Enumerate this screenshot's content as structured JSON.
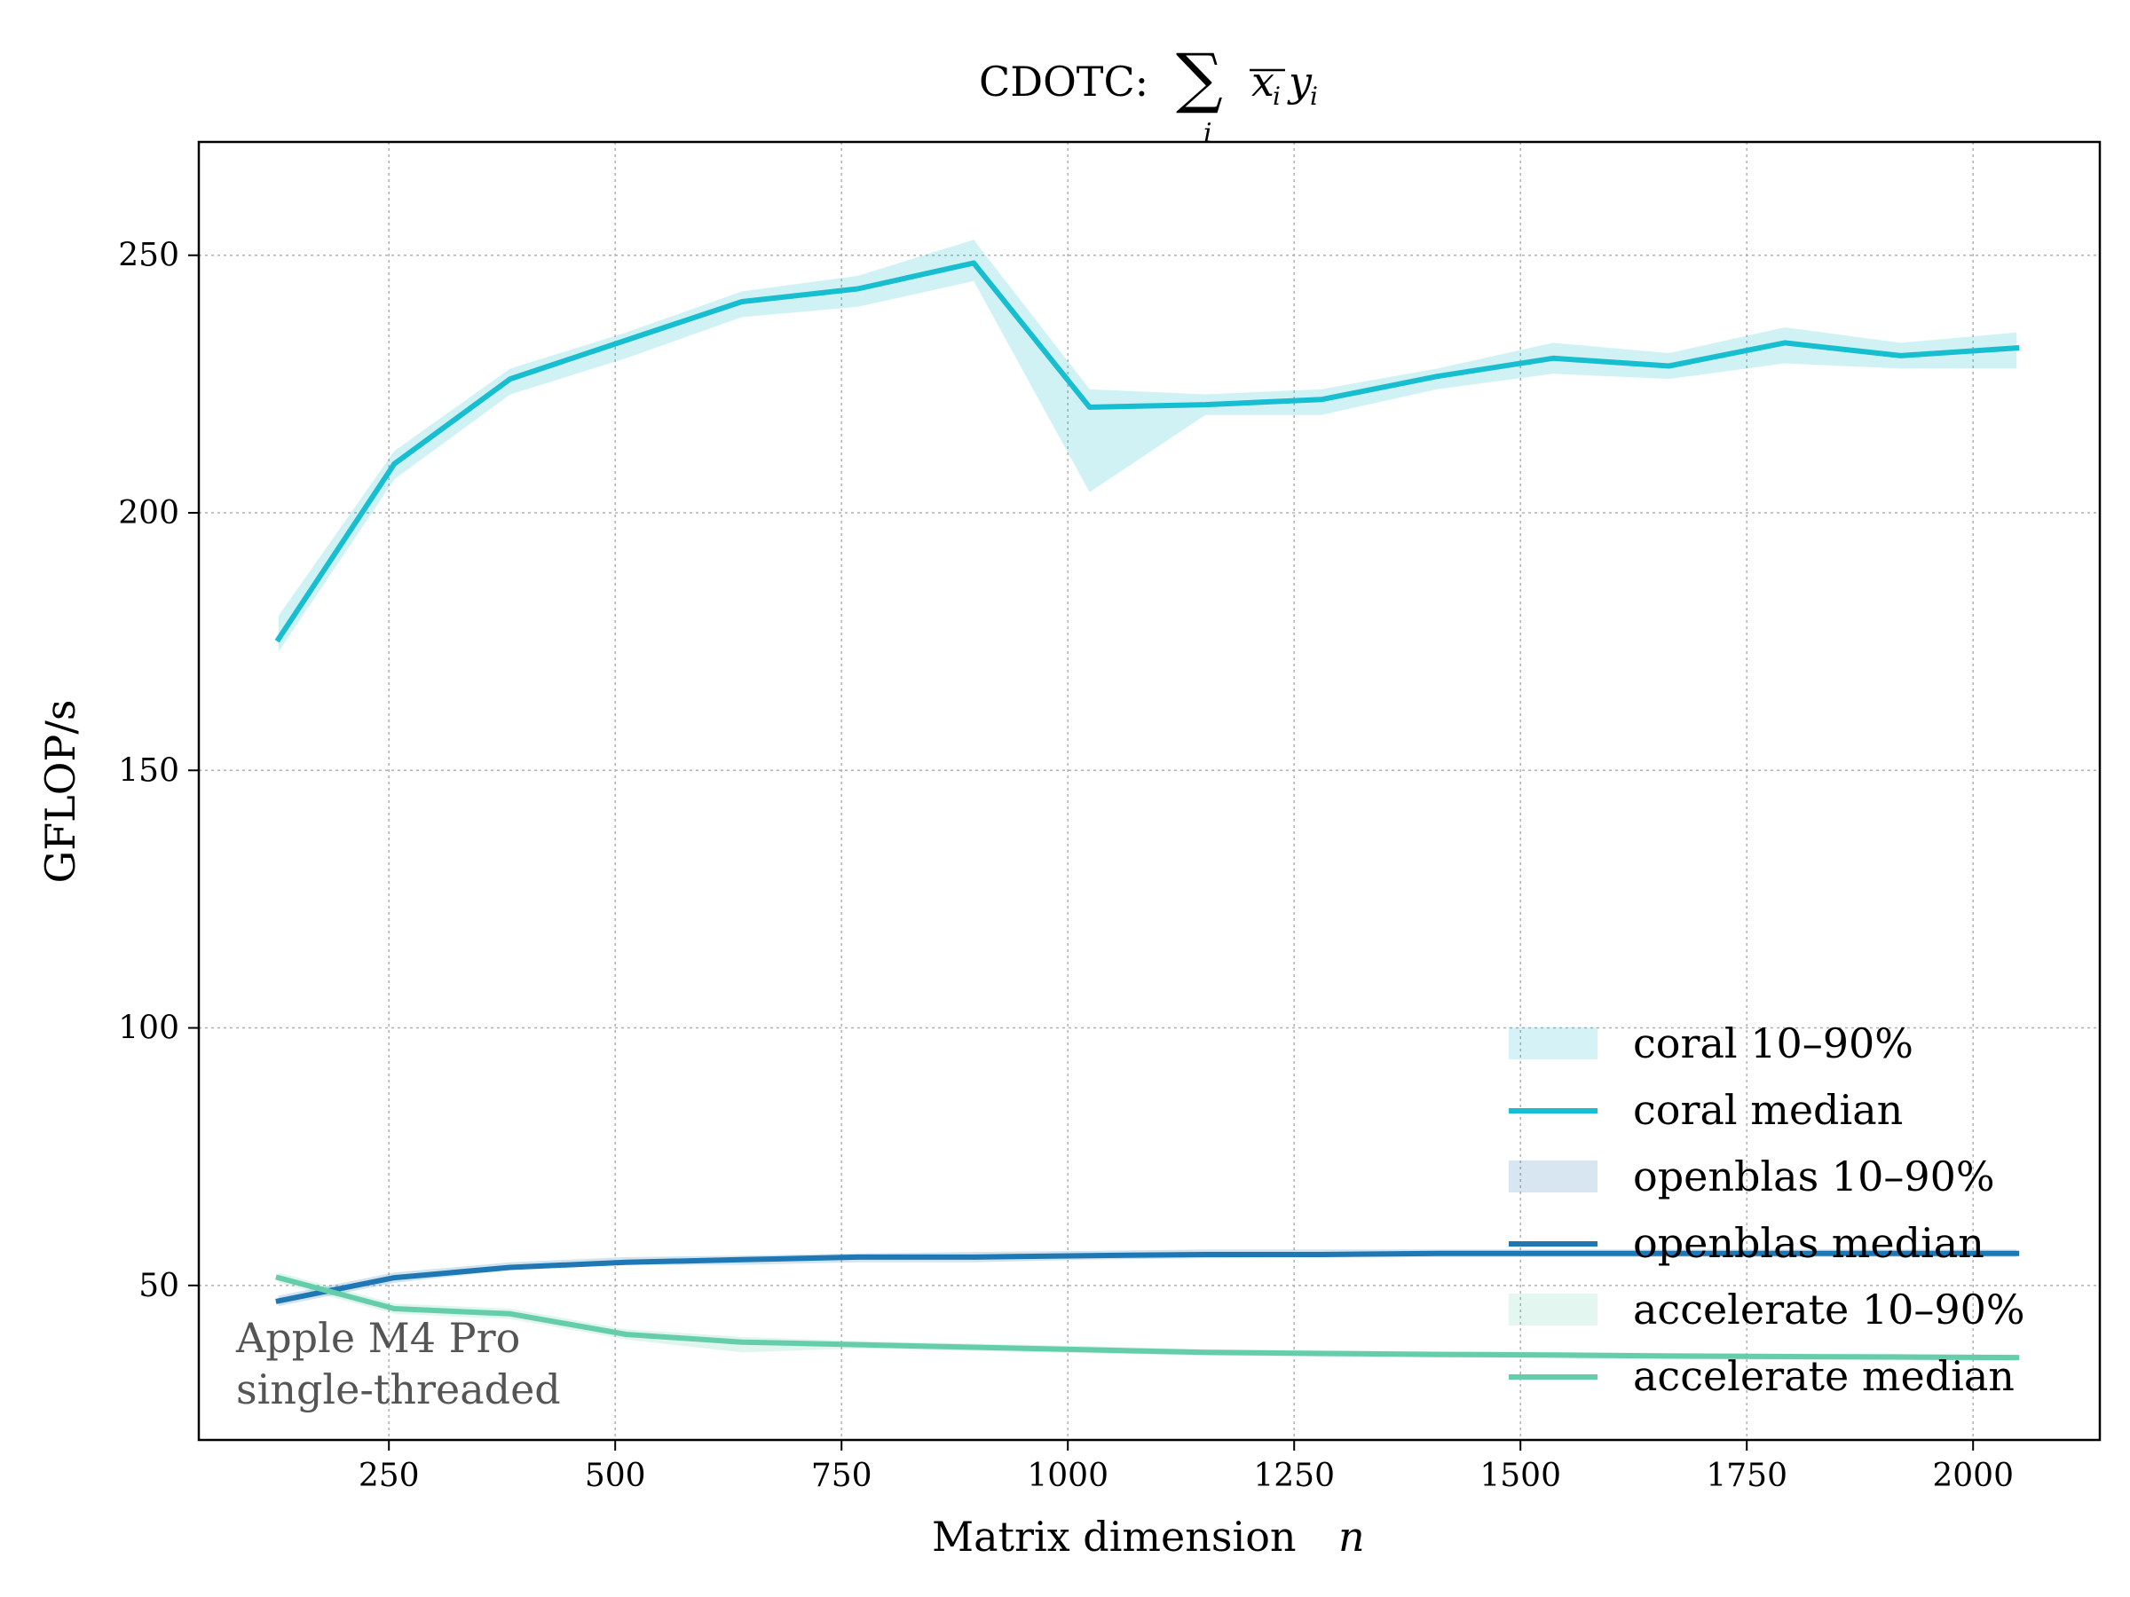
{
  "chart_data": {
    "type": "line",
    "title": "CDOTC: ∑ x̄ᵢ yᵢ",
    "title_parts": {
      "prefix": "CDOTC:",
      "sum": "∑",
      "sub": "i",
      "x": "x",
      "xsub": "i",
      "y": "y",
      "ysub": "i"
    },
    "xlabel": "Matrix dimension",
    "xlabel_var": "n",
    "ylabel": "GFLOP/s",
    "xlim": [
      40,
      2140
    ],
    "ylim": [
      20,
      272
    ],
    "xticks": [
      250,
      500,
      750,
      1000,
      1250,
      1500,
      1750,
      2000
    ],
    "yticks": [
      50,
      100,
      150,
      200,
      250
    ],
    "grid": true,
    "legend_position": "lower-right",
    "annotation": [
      "Apple M4 Pro",
      "single-threaded"
    ],
    "x": [
      128,
      256,
      384,
      512,
      640,
      768,
      896,
      1024,
      1152,
      1280,
      1408,
      1536,
      1664,
      1792,
      1920,
      2048
    ],
    "series": [
      {
        "name": "coral median",
        "band_name": "coral 10–90%",
        "color": "#17becf",
        "band_color": "#17becf",
        "values": [
          175.5,
          209.5,
          226,
          233.5,
          241,
          243.5,
          248.5,
          220.5,
          221,
          222,
          226.5,
          230,
          228.5,
          233,
          230.5,
          232
        ],
        "p10": [
          173,
          206.5,
          223,
          230,
          238,
          240,
          245,
          204,
          219,
          219,
          224,
          227,
          226,
          229,
          228,
          228
        ],
        "p90": [
          180,
          212,
          228,
          235,
          243,
          246,
          253,
          224,
          223,
          224,
          228,
          233,
          231,
          236,
          233,
          235
        ]
      },
      {
        "name": "openblas median",
        "band_name": "openblas 10–90%",
        "color": "#1f77b4",
        "band_color": "#1f77b4",
        "values": [
          47,
          51.5,
          53.5,
          54.5,
          55,
          55.5,
          55.5,
          55.8,
          56,
          56,
          56.2,
          56.2,
          56.2,
          56.2,
          56.2,
          56.2
        ],
        "p10": [
          46,
          50.5,
          53,
          54,
          54,
          54.5,
          54.5,
          55,
          55.3,
          55.5,
          55.5,
          55.5,
          55.5,
          55.5,
          55.5,
          55.5
        ],
        "p90": [
          48,
          52.5,
          54.5,
          55.5,
          55.8,
          56.2,
          56.5,
          56.7,
          57,
          57,
          57,
          57,
          57,
          57,
          57,
          57
        ]
      },
      {
        "name": "accelerate median",
        "band_name": "accelerate 10–90%",
        "color": "#66cdaa",
        "band_color": "#66cdaa",
        "values": [
          51.5,
          45.5,
          44.5,
          40.5,
          39,
          38.5,
          38,
          37.5,
          37,
          36.8,
          36.6,
          36.5,
          36.3,
          36.2,
          36.1,
          36
        ],
        "p10": [
          50.5,
          44.5,
          43.5,
          39.5,
          37,
          37.8,
          37.3,
          36.8,
          36.4,
          36.2,
          36,
          35.9,
          35.7,
          35.6,
          35.5,
          35.4
        ],
        "p90": [
          52.5,
          46.5,
          45.5,
          41.5,
          40,
          39.2,
          38.7,
          38.2,
          37.6,
          37.4,
          37.2,
          37.1,
          36.9,
          36.8,
          36.7,
          36.6
        ]
      }
    ]
  }
}
